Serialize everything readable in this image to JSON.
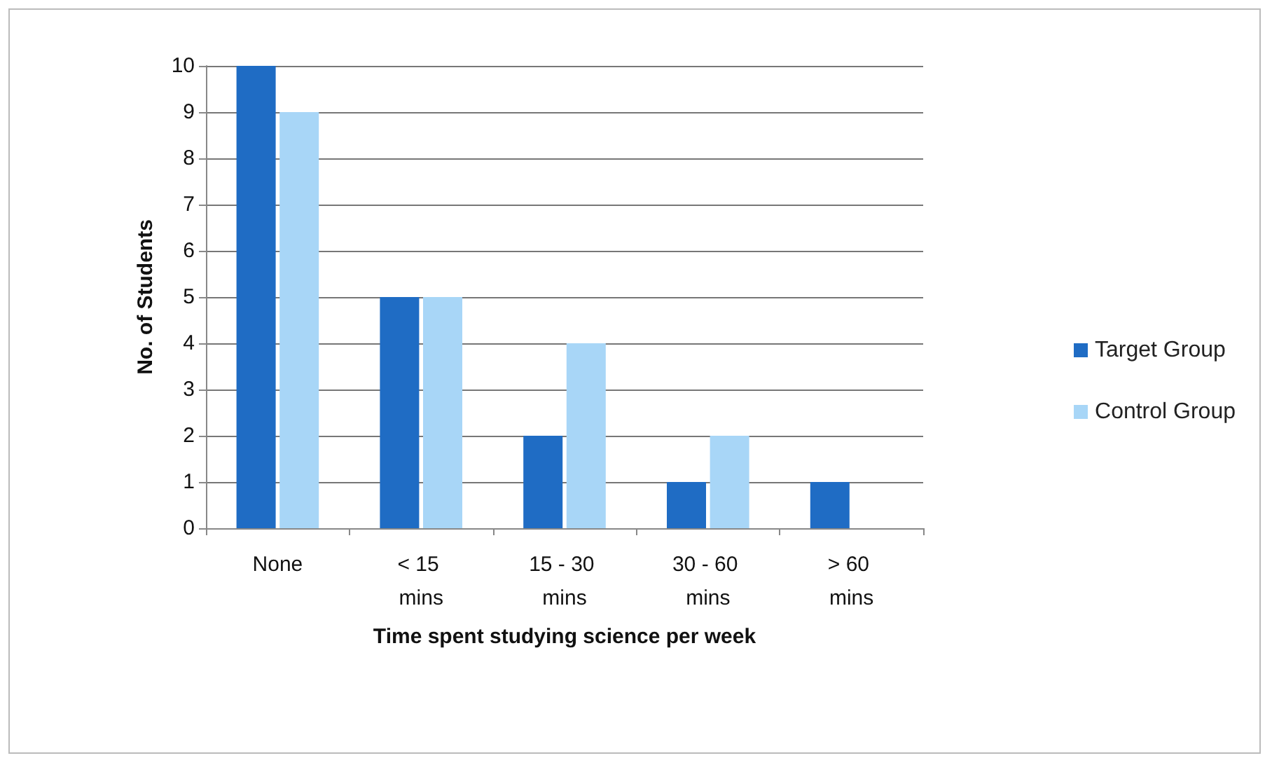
{
  "chart_data": {
    "type": "bar",
    "xlabel": "Time spent studying science per week",
    "ylabel": "No. of Students",
    "categories": [
      "None",
      "< 15 mins",
      "15 - 30 mins",
      "30 - 60 mins",
      "> 60 mins"
    ],
    "series": [
      {
        "name": "Target Group",
        "color": "#1f6cc4",
        "values": [
          10,
          5,
          2,
          1,
          1
        ]
      },
      {
        "name": "Control Group",
        "color": "#a8d6f7",
        "values": [
          9,
          5,
          4,
          2,
          0
        ]
      }
    ],
    "ylim": [
      0,
      10
    ],
    "yticks": [
      0,
      1,
      2,
      3,
      4,
      5,
      6,
      7,
      8,
      9,
      10
    ],
    "grid": "y",
    "legend": "right"
  }
}
